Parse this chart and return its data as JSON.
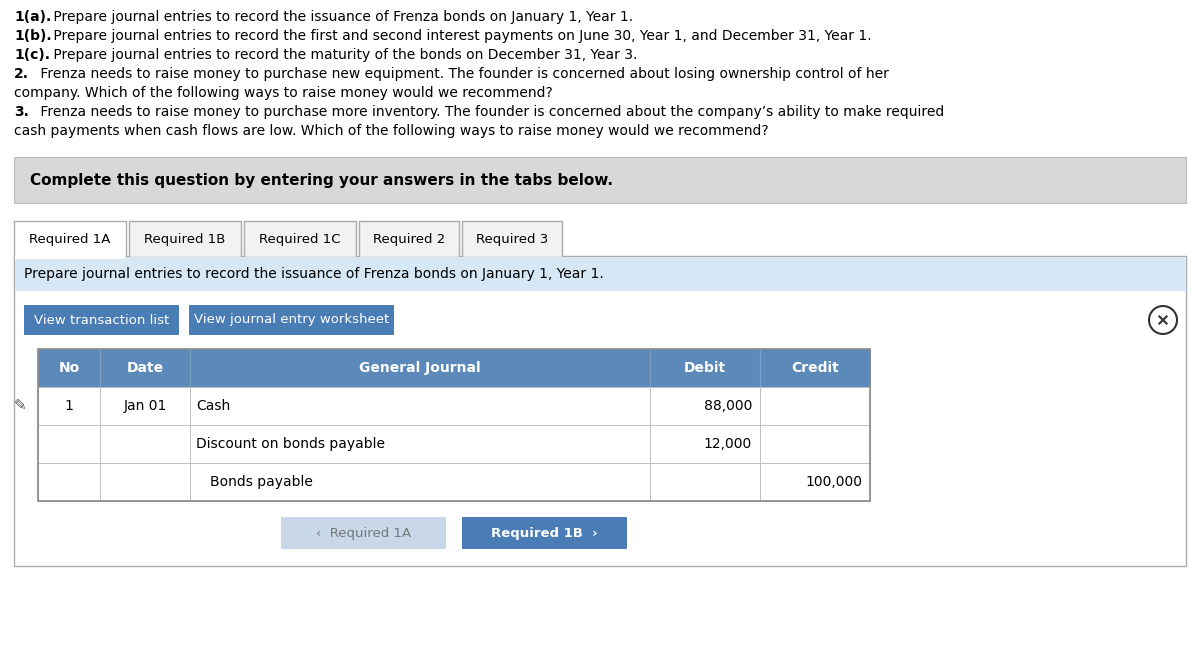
{
  "bg_color": "#ffffff",
  "line1_bold": "1(a).",
  "line1_rest": " Prepare journal entries to record the issuance of Frenza bonds on January 1, Year 1.",
  "line2_bold": "1(b).",
  "line2_rest": " Prepare journal entries to record the first and second interest payments on June 30, Year 1, and December 31, Year 1.",
  "line3_bold": "1(c).",
  "line3_rest": " Prepare journal entries to record the maturity of the bonds on December 31, Year 3.",
  "line4_bold": "2.",
  "line4_rest1": " Frenza needs to raise money to purchase new equipment. The founder is concerned about losing ownership control of her",
  "line4_rest2": "company. Which of the following ways to raise money would we recommend?",
  "line5_bold": "3.",
  "line5_rest1": " Frenza needs to raise money to purchase more inventory. The founder is concerned about the company’s ability to make required",
  "line5_rest2": "cash payments when cash flows are low. Which of the following ways to raise money would we recommend?",
  "complete_text": "Complete this question by entering your answers in the tabs below.",
  "complete_bg": "#d8d8d8",
  "tabs": [
    "Required 1A",
    "Required 1B",
    "Required 1C",
    "Required 2",
    "Required 3"
  ],
  "active_tab": 0,
  "tab_instruction": "Prepare journal entries to record the issuance of Frenza bonds on January 1, Year 1.",
  "tab_instruction_bg": "#d6e8f5",
  "btn1": "View transaction list",
  "btn2": "View journal entry worksheet",
  "btn_color": "#4a7cb5",
  "btn_text_color": "#ffffff",
  "table_header_bg": "#5b8aba",
  "table_header_text": "#ffffff",
  "table_headers": [
    "No",
    "Date",
    "General Journal",
    "Debit",
    "Credit"
  ],
  "rows": [
    {
      "no": "1",
      "date": "Jan 01",
      "journal": "Cash",
      "indent": false,
      "debit": "88,000",
      "credit": ""
    },
    {
      "no": "",
      "date": "",
      "journal": "Discount on bonds payable",
      "indent": false,
      "debit": "12,000",
      "credit": ""
    },
    {
      "no": "",
      "date": "",
      "journal": "Bonds payable",
      "indent": true,
      "debit": "",
      "credit": "100,000"
    }
  ],
  "nav_btn_left_text": "‹  Required 1A",
  "nav_btn_right_text": "Required 1B  ›",
  "nav_btn_left_bg": "#c8d8e8",
  "nav_btn_right_bg": "#4a7cb5",
  "nav_btn_left_text_color": "#777777",
  "nav_btn_right_text_color": "#ffffff"
}
